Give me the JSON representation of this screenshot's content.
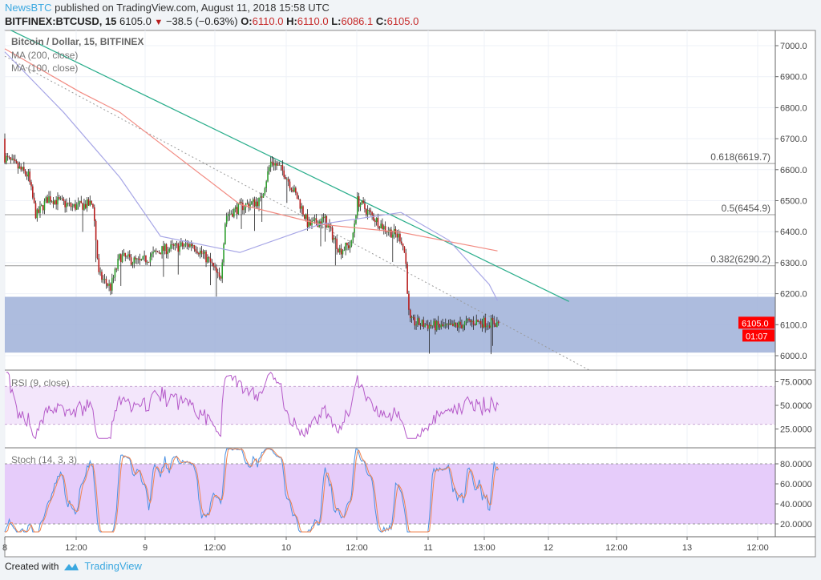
{
  "header": {
    "publisher": "NewsBTC",
    "published_text": "published on TradingView.com, August 11, 2018 15:58 UTC",
    "symbol": "BITFINEX:BTCUSD, 15",
    "last": "6105.0",
    "change": "−38.5 (−0.63%)",
    "change_direction": "down",
    "o_label": "O:",
    "o": "6110.0",
    "h_label": "H:",
    "h": "6110.0",
    "l_label": "L:",
    "l": "6086.1",
    "c_label": "C:",
    "c": "6105.0"
  },
  "legend": {
    "title": "Bitcoin / Dollar, 15, BITFINEX",
    "ma200": "MA (200, close)",
    "ma100": "MA (100, close)",
    "rsi": "RSI (9, close)",
    "stoch": "Stoch (14, 3, 3)"
  },
  "footer": {
    "created_with": "Created with",
    "brand": "TradingView"
  },
  "colors": {
    "up": "#2e9e2e",
    "down": "#b71c1c",
    "ma200": "#f28b82",
    "ma100": "#a7a6e6",
    "trendline": "#2bae8c",
    "zone": "#9fb0d8",
    "rsi": "#b55ac9",
    "stoch_k": "#4a90e2",
    "stoch_d": "#f0834f",
    "brand": "#3ba8e0",
    "last_price_bg": "#ff0000"
  },
  "chart_data": [
    {
      "type": "candlestick",
      "interval": "15",
      "title": "Bitcoin / Dollar, 15, BITFINEX",
      "ylim": [
        5950,
        7050
      ],
      "y_ticks": [
        "6000.0",
        "6100.0",
        "6200.0",
        "6300.0",
        "6400.0",
        "6500.0",
        "6600.0",
        "6700.0",
        "6800.0",
        "6900.0",
        "7000.0"
      ],
      "x_ticks": [
        "8",
        "12:00",
        "9",
        "12:00",
        "10",
        "12:00",
        "11",
        "13:00",
        "12",
        "12:00",
        "13",
        "12:00"
      ],
      "grid": true,
      "last_price": "6105.0",
      "countdown": "01:07",
      "price_path": [
        [
          "2018-08-08T00:00",
          6640
        ],
        [
          "2018-08-08T02:00",
          6610
        ],
        [
          "2018-08-08T04:00",
          6580
        ],
        [
          "2018-08-08T05:20",
          6450
        ],
        [
          "2018-08-08T07:25",
          6510
        ],
        [
          "2018-08-08T11:30",
          6480
        ],
        [
          "2018-08-08T15:00",
          6490
        ],
        [
          "2018-08-08T16:00",
          6260
        ],
        [
          "2018-08-08T18:00",
          6220
        ],
        [
          "2018-08-08T19:35",
          6320
        ],
        [
          "2018-08-08T23:00",
          6300
        ],
        [
          "2018-08-09T02:30",
          6340
        ],
        [
          "2018-08-09T08:00",
          6360
        ],
        [
          "2018-08-09T11:00",
          6300
        ],
        [
          "2018-08-09T12:40",
          6240
        ],
        [
          "2018-08-09T13:35",
          6450
        ],
        [
          "2018-08-09T16:00",
          6480
        ],
        [
          "2018-08-09T19:30",
          6500
        ],
        [
          "2018-08-09T21:20",
          6630
        ],
        [
          "2018-08-09T23:35",
          6590
        ],
        [
          "2018-08-10T02:00",
          6500
        ],
        [
          "2018-08-10T03:40",
          6420
        ],
        [
          "2018-08-10T06:25",
          6440
        ],
        [
          "2018-08-10T09:00",
          6340
        ],
        [
          "2018-08-10T11:00",
          6360
        ],
        [
          "2018-08-10T12:00",
          6500
        ],
        [
          "2018-08-10T14:00",
          6460
        ],
        [
          "2018-08-10T16:40",
          6410
        ],
        [
          "2018-08-10T19:25",
          6380
        ],
        [
          "2018-08-10T20:10",
          6320
        ],
        [
          "2018-08-10T20:50",
          6110
        ],
        [
          "2018-08-10T23:30",
          6100
        ],
        [
          "2018-08-11T03:35",
          6090
        ],
        [
          "2018-08-11T07:40",
          6110
        ],
        [
          "2018-08-11T12:00",
          6105
        ]
      ],
      "series": [
        {
          "name": "MA (200, close)",
          "points": [
            [
              "2018-08-08T00:00",
              6990
            ],
            [
              "2018-08-08T12:50",
              6850
            ],
            [
              "2018-08-08T19:35",
              6785
            ],
            [
              "2018-08-09T16:00",
              6488
            ],
            [
              "2018-08-10T05:40",
              6424
            ],
            [
              "2018-08-10T19:25",
              6398
            ],
            [
              "2018-08-11T11:50",
              6338
            ]
          ]
        },
        {
          "name": "MA (100, close)",
          "points": [
            [
              "2018-08-08T00:00",
              6980
            ],
            [
              "2018-08-08T10:00",
              6785
            ],
            [
              "2018-08-08T19:35",
              6575
            ],
            [
              "2018-08-09T02:30",
              6385
            ],
            [
              "2018-08-09T16:00",
              6333
            ],
            [
              "2018-08-10T05:40",
              6424
            ],
            [
              "2018-08-10T19:25",
              6462
            ],
            [
              "2018-08-11T03:35",
              6372
            ],
            [
              "2018-08-11T10:25",
              6230
            ],
            [
              "2018-08-11T11:50",
              6178
            ]
          ]
        }
      ],
      "annotations": {
        "fib_levels": [
          {
            "label": "0.618(6619.7)",
            "price": 6619.7
          },
          {
            "label": "0.5(6454.9)",
            "price": 6454.9
          },
          {
            "label": "0.382(6290.2)",
            "price": 6290.2
          }
        ],
        "support_zone": [
          6010,
          6190
        ],
        "descending_trendline": [
          [
            "2018-08-08T01:00",
            7050
          ],
          [
            "2018-08-11T24:00",
            6175
          ]
        ],
        "dotted_trendline": [
          [
            "2018-08-08T00:00",
            6966
          ],
          [
            "2018-08-12T03:30",
            5953
          ]
        ]
      }
    },
    {
      "type": "line",
      "title": "RSI (9, close)",
      "ylim": [
        15,
        85
      ],
      "y_ticks": [
        "25.0000",
        "50.0000",
        "75.0000"
      ],
      "bands": [
        30,
        70
      ]
    },
    {
      "type": "line",
      "title": "Stoch (14, 3, 3)",
      "ylim": [
        12,
        95
      ],
      "y_ticks": [
        "20.0000",
        "40.0000",
        "60.0000",
        "80.0000"
      ],
      "bands": [
        20,
        80
      ]
    }
  ]
}
